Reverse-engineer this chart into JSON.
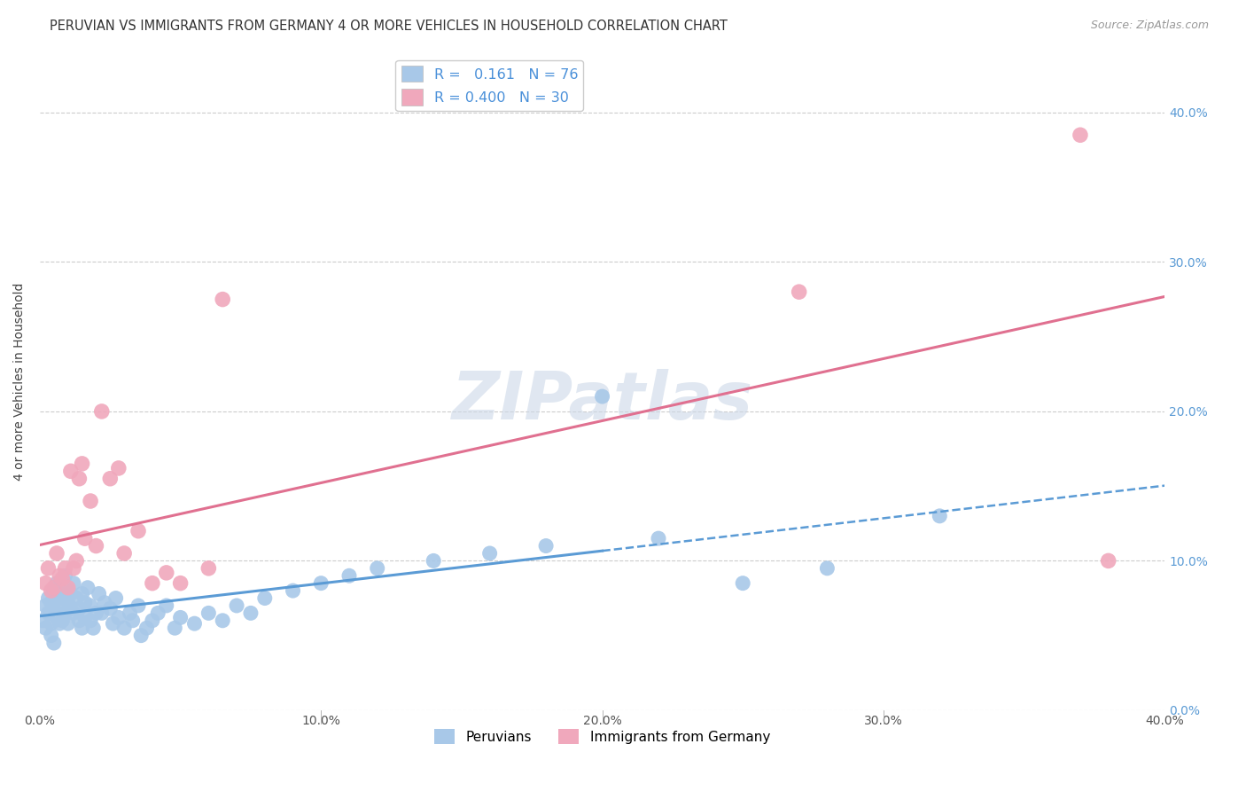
{
  "title": "PERUVIAN VS IMMIGRANTS FROM GERMANY 4 OR MORE VEHICLES IN HOUSEHOLD CORRELATION CHART",
  "source": "Source: ZipAtlas.com",
  "ylabel": "4 or more Vehicles in Household",
  "xlim": [
    0.0,
    0.4
  ],
  "ylim": [
    0.0,
    0.44
  ],
  "line1_color": "#5b9bd5",
  "line2_color": "#e07090",
  "scatter1_color": "#a8c8e8",
  "scatter2_color": "#f0a8bc",
  "watermark": "ZIPatlas",
  "watermark_color": "#ccd8e8",
  "background_color": "#ffffff",
  "grid_color": "#cccccc",
  "title_fontsize": 10.5,
  "source_fontsize": 9,
  "legend_label1": "Peruvians",
  "legend_label2": "Immigrants from Germany",
  "legend_r1": "R =   0.161   N = 76",
  "legend_r2": "R = 0.400   N = 30",
  "peruvian_x": [
    0.001,
    0.002,
    0.002,
    0.003,
    0.003,
    0.004,
    0.004,
    0.004,
    0.005,
    0.005,
    0.005,
    0.006,
    0.006,
    0.006,
    0.007,
    0.007,
    0.007,
    0.008,
    0.008,
    0.009,
    0.009,
    0.01,
    0.01,
    0.01,
    0.011,
    0.011,
    0.012,
    0.012,
    0.013,
    0.014,
    0.014,
    0.015,
    0.015,
    0.016,
    0.016,
    0.017,
    0.018,
    0.018,
    0.019,
    0.02,
    0.021,
    0.022,
    0.023,
    0.025,
    0.026,
    0.027,
    0.028,
    0.03,
    0.032,
    0.033,
    0.035,
    0.036,
    0.038,
    0.04,
    0.042,
    0.045,
    0.048,
    0.05,
    0.055,
    0.06,
    0.065,
    0.07,
    0.075,
    0.08,
    0.09,
    0.1,
    0.11,
    0.12,
    0.14,
    0.16,
    0.18,
    0.2,
    0.22,
    0.25,
    0.28,
    0.32
  ],
  "peruvian_y": [
    0.06,
    0.055,
    0.07,
    0.065,
    0.075,
    0.05,
    0.058,
    0.072,
    0.068,
    0.08,
    0.045,
    0.062,
    0.075,
    0.085,
    0.058,
    0.07,
    0.082,
    0.06,
    0.075,
    0.065,
    0.09,
    0.072,
    0.08,
    0.058,
    0.068,
    0.078,
    0.085,
    0.065,
    0.075,
    0.068,
    0.06,
    0.078,
    0.055,
    0.072,
    0.062,
    0.082,
    0.06,
    0.07,
    0.055,
    0.065,
    0.078,
    0.065,
    0.072,
    0.068,
    0.058,
    0.075,
    0.062,
    0.055,
    0.065,
    0.06,
    0.07,
    0.05,
    0.055,
    0.06,
    0.065,
    0.07,
    0.055,
    0.062,
    0.058,
    0.065,
    0.06,
    0.07,
    0.065,
    0.075,
    0.08,
    0.085,
    0.09,
    0.095,
    0.1,
    0.105,
    0.11,
    0.21,
    0.115,
    0.085,
    0.095,
    0.13
  ],
  "germany_x": [
    0.002,
    0.003,
    0.004,
    0.005,
    0.006,
    0.007,
    0.008,
    0.009,
    0.01,
    0.011,
    0.012,
    0.013,
    0.014,
    0.015,
    0.016,
    0.018,
    0.02,
    0.022,
    0.025,
    0.028,
    0.03,
    0.035,
    0.04,
    0.045,
    0.05,
    0.06,
    0.065,
    0.27,
    0.37,
    0.38
  ],
  "germany_y": [
    0.085,
    0.095,
    0.08,
    0.082,
    0.105,
    0.09,
    0.088,
    0.095,
    0.082,
    0.16,
    0.095,
    0.1,
    0.155,
    0.165,
    0.115,
    0.14,
    0.11,
    0.2,
    0.155,
    0.162,
    0.105,
    0.12,
    0.085,
    0.092,
    0.085,
    0.095,
    0.275,
    0.28,
    0.385,
    0.1
  ]
}
